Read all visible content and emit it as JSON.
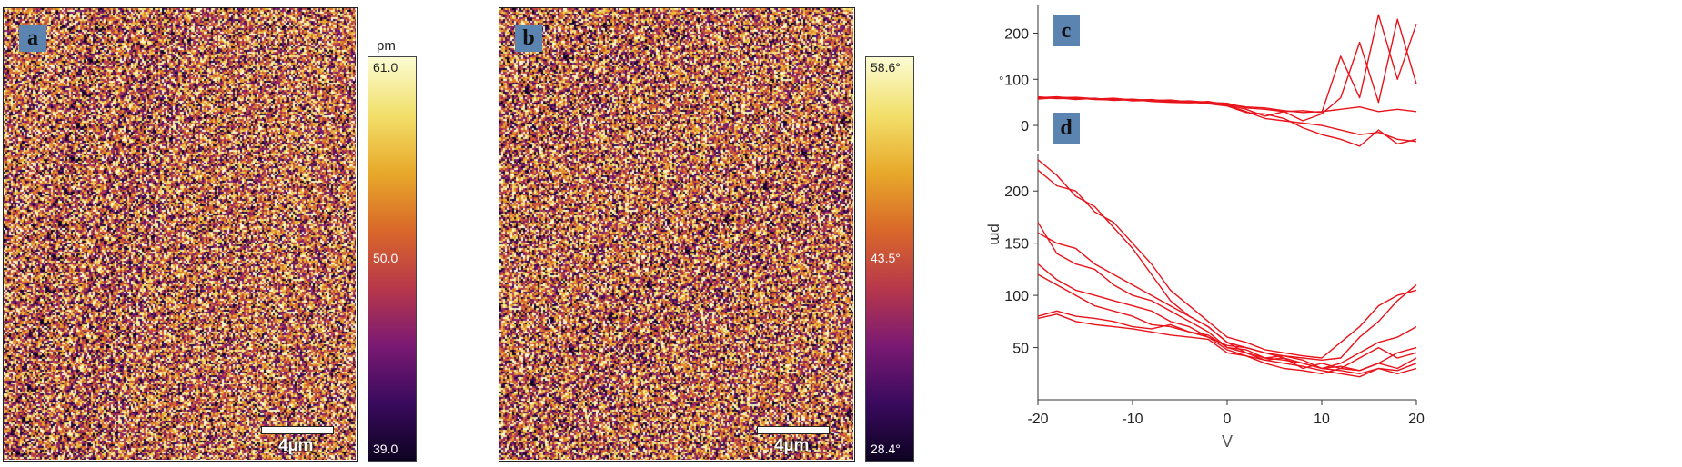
{
  "panel_a": {
    "tag": "a",
    "scale_label": "4µm",
    "colorbar": {
      "unit": "pm",
      "max": "61.0",
      "mid": "50.0",
      "min": "39.0"
    }
  },
  "panel_b": {
    "tag": "b",
    "scale_label": "4µm",
    "colorbar": {
      "max": "58.6°",
      "mid": "43.5°",
      "min": "28.4°"
    }
  },
  "colors": {
    "line": "#e8141b",
    "colormap": [
      "#0d0221",
      "#3a0a5e",
      "#7b1a73",
      "#b8384a",
      "#d9682a",
      "#e8a92a",
      "#f2e06b",
      "#fbfbd2"
    ]
  },
  "chart_data": [
    {
      "type": "line",
      "tag": "c",
      "ylabel": "°",
      "xlim": [
        -20,
        20
      ],
      "ylim": [
        -55,
        260
      ],
      "yticks": [
        "200",
        "100",
        "0"
      ],
      "ytick_values": [
        200,
        100,
        0
      ],
      "x": [
        -20,
        -18,
        -16,
        -14,
        -12,
        -10,
        -8,
        -6,
        -4,
        -2,
        0,
        2,
        4,
        6,
        8,
        10,
        12,
        14,
        16,
        18,
        20
      ],
      "series": [
        {
          "values": [
            60,
            62,
            58,
            57,
            59,
            55,
            56,
            52,
            53,
            50,
            48,
            38,
            35,
            30,
            32,
            28,
            150,
            60,
            240,
            100,
            220
          ]
        },
        {
          "values": [
            58,
            61,
            60,
            56,
            55,
            57,
            53,
            54,
            50,
            52,
            45,
            35,
            20,
            30,
            10,
            25,
            60,
            180,
            50,
            230,
            90
          ]
        },
        {
          "values": [
            62,
            59,
            61,
            58,
            57,
            54,
            55,
            51,
            52,
            48,
            46,
            40,
            38,
            32,
            28,
            30,
            35,
            40,
            30,
            35,
            30
          ]
        },
        {
          "values": [
            57,
            60,
            56,
            59,
            54,
            56,
            52,
            50,
            49,
            50,
            44,
            30,
            15,
            10,
            5,
            0,
            -10,
            -20,
            -15,
            -30,
            -35
          ]
        },
        {
          "values": [
            61,
            58,
            59,
            57,
            58,
            53,
            54,
            55,
            51,
            47,
            42,
            28,
            25,
            15,
            -5,
            -20,
            -30,
            -45,
            -10,
            -40,
            -30
          ]
        }
      ]
    },
    {
      "type": "line",
      "tag": "d",
      "xlabel": "V",
      "ylabel": "pm",
      "xlim": [
        -20,
        20
      ],
      "ylim": [
        0,
        235
      ],
      "xticks": [
        "-20",
        "-10",
        "0",
        "10",
        "20"
      ],
      "xtick_values": [
        -20,
        -10,
        0,
        10,
        20
      ],
      "yticks": [
        "200",
        "150",
        "100",
        "50"
      ],
      "ytick_values": [
        200,
        150,
        100,
        50
      ],
      "x": [
        -20,
        -18,
        -16,
        -14,
        -12,
        -10,
        -8,
        -6,
        -4,
        -2,
        0,
        2,
        4,
        6,
        8,
        10,
        12,
        14,
        16,
        18,
        20
      ],
      "series": [
        {
          "values": [
            230,
            215,
            195,
            185,
            165,
            145,
            120,
            95,
            80,
            70,
            55,
            50,
            45,
            42,
            40,
            38,
            40,
            60,
            75,
            95,
            110
          ]
        },
        {
          "values": [
            220,
            205,
            200,
            180,
            170,
            150,
            130,
            105,
            90,
            75,
            60,
            55,
            48,
            45,
            42,
            40,
            55,
            70,
            90,
            100,
            105
          ]
        },
        {
          "values": [
            160,
            150,
            145,
            130,
            120,
            110,
            100,
            90,
            80,
            70,
            55,
            45,
            40,
            42,
            38,
            30,
            35,
            45,
            55,
            60,
            70
          ]
        },
        {
          "values": [
            170,
            140,
            130,
            125,
            110,
            100,
            95,
            85,
            75,
            65,
            50,
            45,
            38,
            40,
            30,
            35,
            30,
            40,
            50,
            40,
            45
          ]
        },
        {
          "values": [
            130,
            115,
            105,
            100,
            95,
            90,
            85,
            75,
            70,
            60,
            48,
            42,
            35,
            30,
            28,
            25,
            30,
            28,
            35,
            30,
            40
          ]
        },
        {
          "values": [
            120,
            110,
            100,
            90,
            85,
            80,
            72,
            70,
            65,
            62,
            50,
            48,
            40,
            38,
            35,
            30,
            28,
            25,
            30,
            28,
            35
          ]
        },
        {
          "values": [
            80,
            85,
            80,
            78,
            75,
            70,
            68,
            72,
            65,
            60,
            52,
            50,
            45,
            40,
            35,
            30,
            32,
            28,
            35,
            45,
            50
          ]
        },
        {
          "values": [
            78,
            82,
            75,
            72,
            70,
            68,
            65,
            62,
            60,
            58,
            45,
            42,
            38,
            35,
            32,
            28,
            25,
            22,
            30,
            25,
            30
          ]
        }
      ]
    }
  ]
}
